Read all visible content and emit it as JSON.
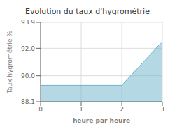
{
  "chart_data": {
    "type": "area",
    "title": "Evolution du taux d'hygrométrie",
    "xlabel": "heure par heure",
    "ylabel": "Taux hygrométrie %",
    "x": [
      0,
      2,
      3
    ],
    "values": [
      89.3,
      89.3,
      92.5
    ],
    "color": "#6ab4cc",
    "xlim": [
      0,
      3
    ],
    "xticks": [
      0,
      1,
      2,
      3
    ],
    "ylim": [
      88.1,
      93.9
    ],
    "yticks": [
      88.1,
      {
        "value": 90.0,
        "label": "90.0"
      },
      {
        "value": 92.0,
        "label": "92.0"
      },
      93.9
    ],
    "grid": true
  }
}
